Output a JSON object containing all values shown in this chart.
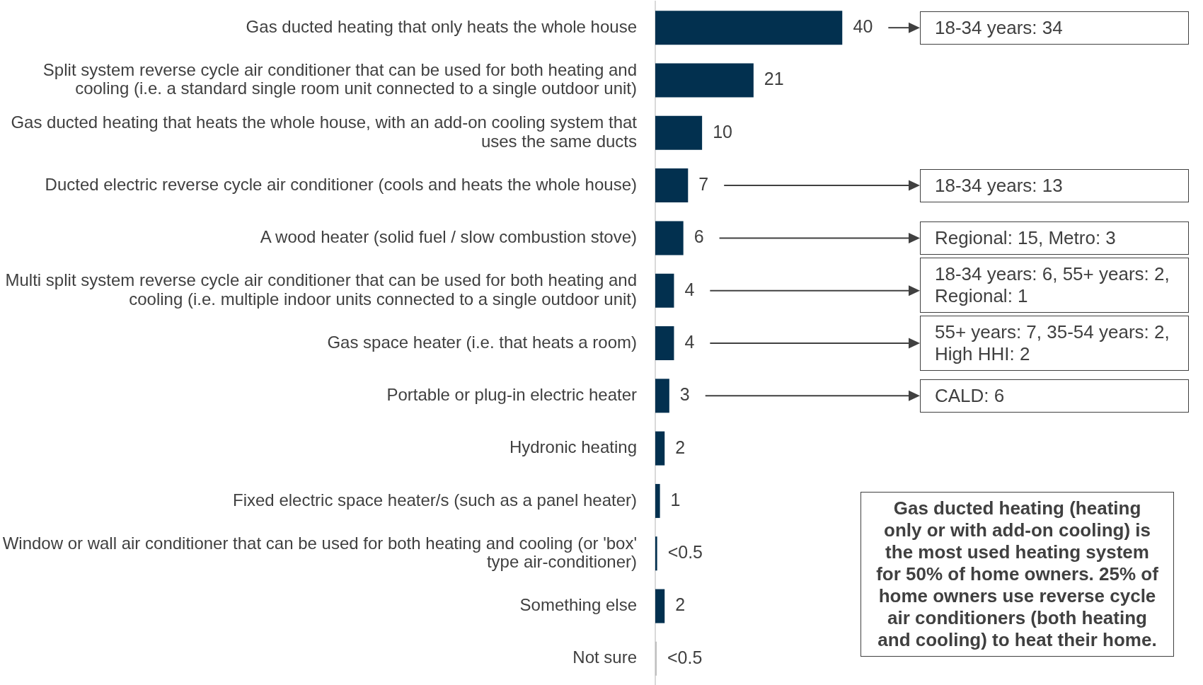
{
  "chart_data": {
    "type": "bar",
    "orientation": "horizontal",
    "categories": [
      "Gas ducted heating that only heats the whole house",
      "Split system reverse cycle air conditioner that can be used for both heating and cooling (i.e. a standard single room unit connected to a single outdoor unit)",
      "Gas ducted heating that heats the whole house, with an add-on cooling system that uses the same ducts",
      "Ducted electric reverse cycle air conditioner (cools and heats the whole house)",
      "A wood heater (solid fuel / slow combustion stove)",
      "Multi split system reverse cycle air conditioner that can be used for both heating and cooling (i.e. multiple indoor units connected to a single outdoor unit)",
      "Gas space heater (i.e. that heats a room)",
      "Portable or plug-in electric heater",
      "Hydronic heating",
      "Fixed electric space heater/s (such as a panel heater)",
      "Window or wall air conditioner that can be used for both heating and cooling (or 'box' type air-conditioner)",
      "Something else",
      "Not sure"
    ],
    "values": [
      40,
      21,
      10,
      7,
      6,
      4,
      4,
      3,
      2,
      1,
      0.4,
      2,
      0.3
    ],
    "colors": [
      "#02304f",
      "#02304f",
      "#02304f",
      "#02304f",
      "#02304f",
      "#02304f",
      "#02304f",
      "#02304f",
      "#02304f",
      "#02304f",
      "#02304f",
      "#02304f",
      "#bfbfbf"
    ],
    "value_labels": [
      "40",
      "21",
      "10",
      "7",
      "6",
      "4",
      "4",
      "3",
      "2",
      "1",
      "<0.5",
      "2",
      "<0.5"
    ],
    "annotations": [
      "18-34 years: 34",
      "18-34 years: 13",
      "Regional: 15, Metro: 3",
      "18-34 years: 6, 55+ years: 2, Regional: 1",
      "55+ years: 7, 35-54 years: 2, High HHI: 2",
      "CALD: 6",
      "Gas ducted heating (heating only or with add-on cooling) is the most used heating system for 50% of home owners. 25% of home owners use reverse cycle air conditioners (both heating and cooling) to heat their home."
    ]
  }
}
